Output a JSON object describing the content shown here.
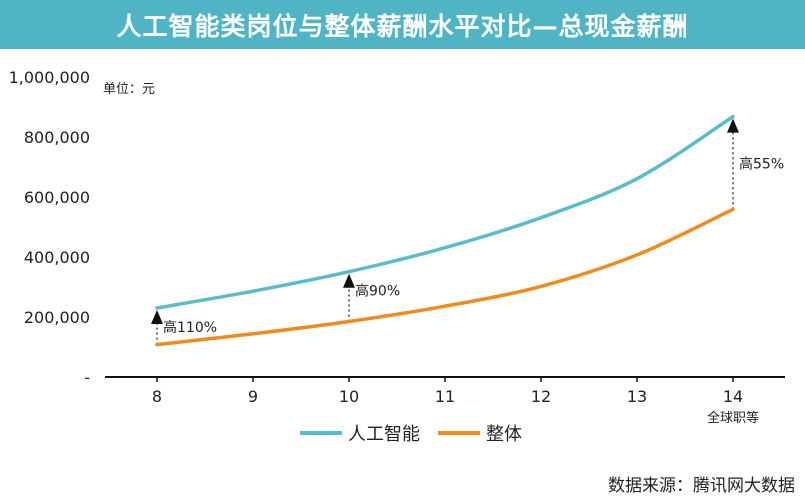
{
  "title": "人工智能类岗位与整体薪酬水平对比—总现金薪酬",
  "unit_label": "单位：元",
  "source": "数据来源：腾讯网大数据",
  "colors": {
    "ai": "#5bbcc9",
    "overall": "#f08a1c",
    "title_bg": "#4fb5c5"
  },
  "chart_data": {
    "type": "line",
    "title": "人工智能类岗位与整体薪酬水平对比—总现金薪酬",
    "x": [
      8,
      9,
      10,
      11,
      12,
      13,
      14
    ],
    "x_ticks": [
      "8",
      "9",
      "10",
      "11",
      "12",
      "13",
      "14"
    ],
    "xlabel": "全球职等",
    "ylabel": "",
    "ylim": [
      0,
      1000000
    ],
    "y_ticks": [
      "-",
      "200,000",
      "400,000",
      "600,000",
      "800,000",
      "1,000,000"
    ],
    "legend_position": "bottom",
    "series": [
      {
        "name": "人工智能",
        "values": [
          230000,
          286000,
          351000,
          431000,
          531000,
          661000,
          868000
        ]
      },
      {
        "name": "整体",
        "values": [
          108000,
          144000,
          185000,
          236000,
          302000,
          407000,
          559000
        ]
      }
    ],
    "annotations": [
      {
        "x": 8,
        "label": "高110%"
      },
      {
        "x": 10,
        "label": "高90%"
      },
      {
        "x": 14,
        "label": "高55%"
      }
    ]
  }
}
